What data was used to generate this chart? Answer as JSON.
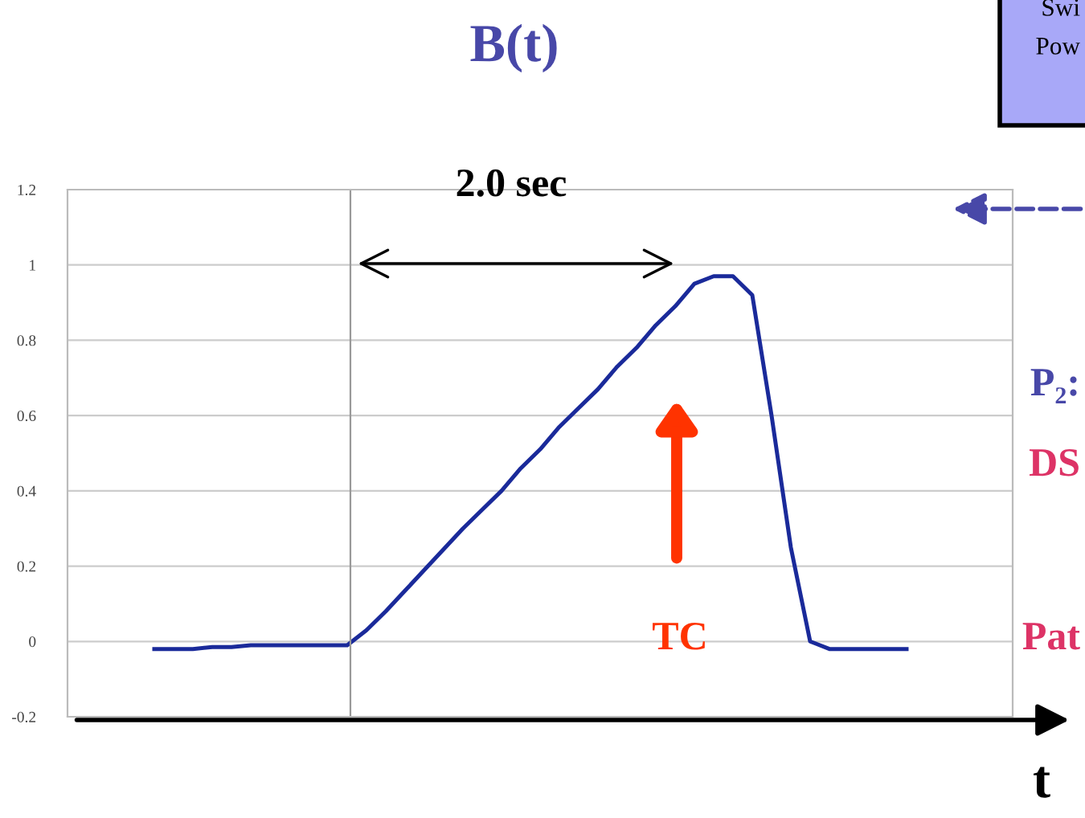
{
  "chart_data": {
    "type": "line",
    "title": "B(t)",
    "xlabel": "t",
    "categories": [
      null,
      null,
      null,
      null,
      null,
      null,
      null,
      null,
      null,
      null,
      null,
      null,
      null,
      null,
      null,
      null,
      null,
      null,
      null,
      null,
      null,
      null,
      null,
      null,
      null,
      null,
      null,
      null,
      null,
      null,
      null,
      null,
      null,
      null,
      null,
      null,
      null,
      null,
      null,
      null,
      null,
      null,
      null,
      null,
      null,
      null,
      null,
      null,
      null
    ],
    "series": [
      {
        "color": "#1a2a9a",
        "values": [
          null,
          null,
          null,
          null,
          -0.02,
          -0.02,
          -0.02,
          -0.015,
          -0.015,
          -0.01,
          -0.01,
          -0.01,
          -0.01,
          -0.01,
          -0.01,
          0.03,
          0.08,
          0.135,
          0.19,
          0.245,
          0.3,
          0.35,
          0.4,
          0.46,
          0.51,
          0.57,
          0.62,
          0.67,
          0.73,
          0.78,
          0.84,
          0.89,
          0.95,
          0.97,
          0.97,
          0.92,
          0.6,
          0.25,
          0.0,
          -0.02,
          -0.02,
          -0.02,
          -0.02,
          -0.02,
          null,
          null,
          null,
          null,
          null
        ]
      }
    ],
    "ylim": [
      -0.2,
      1.2
    ],
    "yticks": [
      -0.2,
      0,
      0.2,
      0.4,
      0.6,
      0.8,
      1,
      1.2
    ],
    "grid": "y",
    "tick_labels": "y",
    "legend": false,
    "marker": "none",
    "line_style": "solid",
    "annotations": [
      "2.0 sec",
      "TC",
      "Swi",
      "Pow",
      "P₂:",
      "DS",
      "Pat"
    ]
  }
}
